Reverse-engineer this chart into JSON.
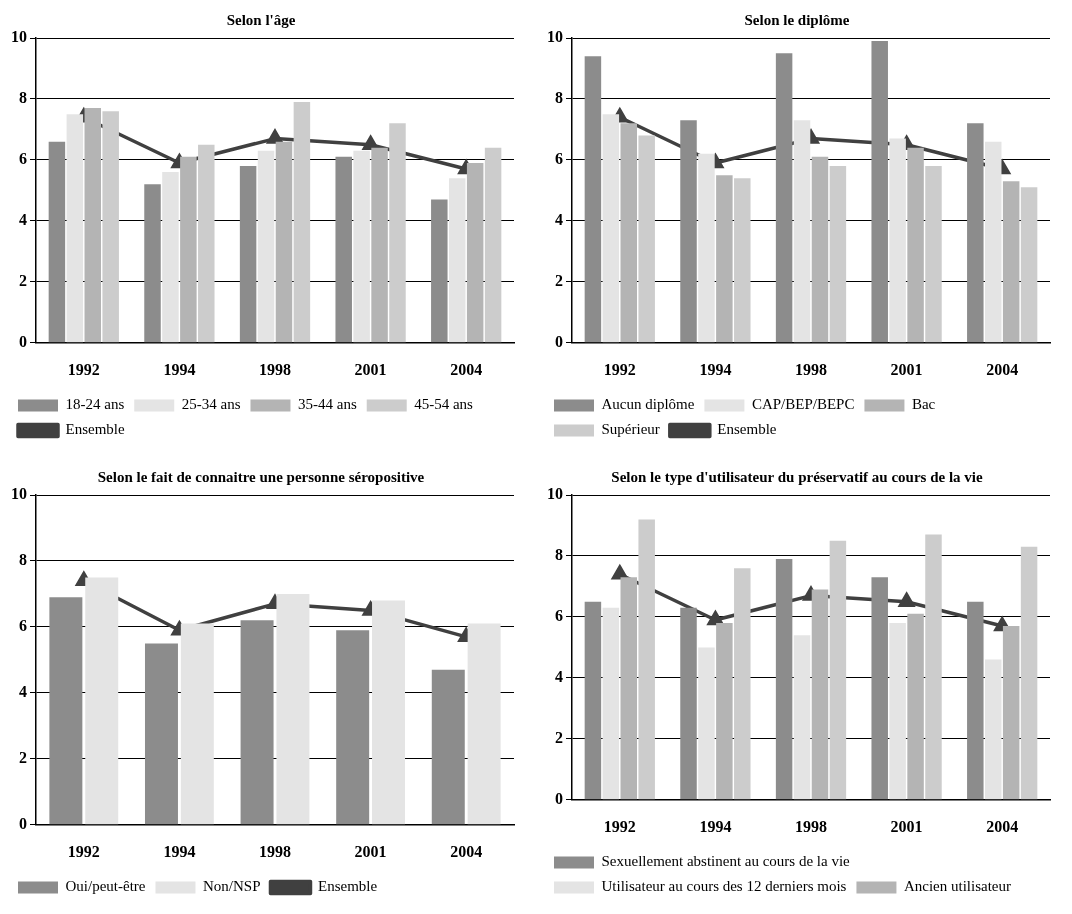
{
  "chart_data": [
    {
      "type": "bar",
      "title": "Selon l'âge",
      "categories": [
        "1992",
        "1994",
        "1998",
        "2001",
        "2004"
      ],
      "ylim": [
        0,
        10
      ],
      "yticks": [
        0,
        2,
        4,
        6,
        8,
        10
      ],
      "grid": "y",
      "legend": "bottom",
      "series": [
        {
          "name": "18-24 ans",
          "color": "#8c8c8c",
          "values": [
            6.6,
            5.2,
            5.8,
            6.1,
            4.7
          ]
        },
        {
          "name": "25-34 ans",
          "color": "#e4e4e4",
          "values": [
            7.5,
            5.6,
            6.3,
            6.3,
            5.4
          ]
        },
        {
          "name": "35-44 ans",
          "color": "#b4b4b4",
          "values": [
            7.7,
            6.1,
            6.6,
            6.4,
            5.9
          ]
        },
        {
          "name": "45-54 ans",
          "color": "#cccccc",
          "values": [
            7.6,
            6.5,
            7.9,
            7.2,
            6.4
          ]
        },
        {
          "name": "Ensemble",
          "type": "line",
          "marker": "triangle",
          "color": "#404040",
          "values": [
            7.4,
            5.9,
            6.7,
            6.5,
            5.7
          ]
        }
      ]
    },
    {
      "type": "bar",
      "title": "Selon le diplôme",
      "categories": [
        "1992",
        "1994",
        "1998",
        "2001",
        "2004"
      ],
      "ylim": [
        0,
        10
      ],
      "yticks": [
        0,
        2,
        4,
        6,
        8,
        10
      ],
      "grid": "y",
      "legend": "bottom",
      "series": [
        {
          "name": "Aucun diplôme",
          "color": "#8c8c8c",
          "values": [
            9.4,
            7.3,
            9.5,
            9.9,
            7.2
          ]
        },
        {
          "name": "CAP/BEP/BEPC",
          "color": "#e4e4e4",
          "values": [
            7.5,
            6.2,
            7.3,
            6.7,
            6.6
          ]
        },
        {
          "name": "Bac",
          "color": "#b4b4b4",
          "values": [
            7.2,
            5.5,
            6.1,
            6.4,
            5.3
          ]
        },
        {
          "name": "Supérieur",
          "color": "#cccccc",
          "values": [
            6.8,
            5.4,
            5.8,
            5.8,
            5.1
          ]
        },
        {
          "name": "Ensemble",
          "type": "line",
          "marker": "triangle",
          "color": "#404040",
          "values": [
            7.4,
            5.9,
            6.7,
            6.5,
            5.7
          ]
        }
      ]
    },
    {
      "type": "bar",
      "title": "Selon le fait de connaitre une personne séropositive",
      "categories": [
        "1992",
        "1994",
        "1998",
        "2001",
        "2004"
      ],
      "ylim": [
        0,
        10
      ],
      "yticks": [
        0,
        2,
        4,
        6,
        8,
        10
      ],
      "grid": "y",
      "legend": "bottom",
      "series": [
        {
          "name": "Oui/peut-être",
          "color": "#8c8c8c",
          "values": [
            6.9,
            5.5,
            6.2,
            5.9,
            4.7
          ]
        },
        {
          "name": "Non/NSP",
          "color": "#e4e4e4",
          "values": [
            7.5,
            6.1,
            7.0,
            6.8,
            6.1
          ]
        },
        {
          "name": "Ensemble",
          "type": "line",
          "marker": "triangle",
          "color": "#404040",
          "values": [
            7.4,
            5.9,
            6.7,
            6.5,
            5.7
          ]
        }
      ]
    },
    {
      "type": "bar",
      "title": "Selon le type d'utilisateur du préservatif au cours de la vie",
      "categories": [
        "1992",
        "1994",
        "1998",
        "2001",
        "2004"
      ],
      "ylim": [
        0,
        10
      ],
      "yticks": [
        0,
        2,
        4,
        6,
        8,
        10
      ],
      "grid": "y",
      "legend": "bottom",
      "series": [
        {
          "name": "Sexuellement abstinent au cours de la vie",
          "color": "#8c8c8c",
          "values": [
            6.5,
            6.3,
            7.9,
            7.3,
            6.5
          ]
        },
        {
          "name": "Utilisateur au cours des 12 derniers mois",
          "color": "#e4e4e4",
          "values": [
            6.3,
            5.0,
            5.4,
            5.8,
            4.6
          ]
        },
        {
          "name": "Ancien utilisateur",
          "color": "#b4b4b4",
          "values": [
            7.3,
            5.8,
            6.9,
            6.1,
            5.7
          ]
        },
        {
          "color": "#cccccc",
          "values": [
            9.2,
            7.6,
            8.5,
            8.7,
            8.3
          ]
        },
        {
          "type": "line",
          "marker": "triangle",
          "color": "#404040",
          "values": [
            7.4,
            5.9,
            6.7,
            6.5,
            5.7
          ]
        }
      ]
    }
  ]
}
